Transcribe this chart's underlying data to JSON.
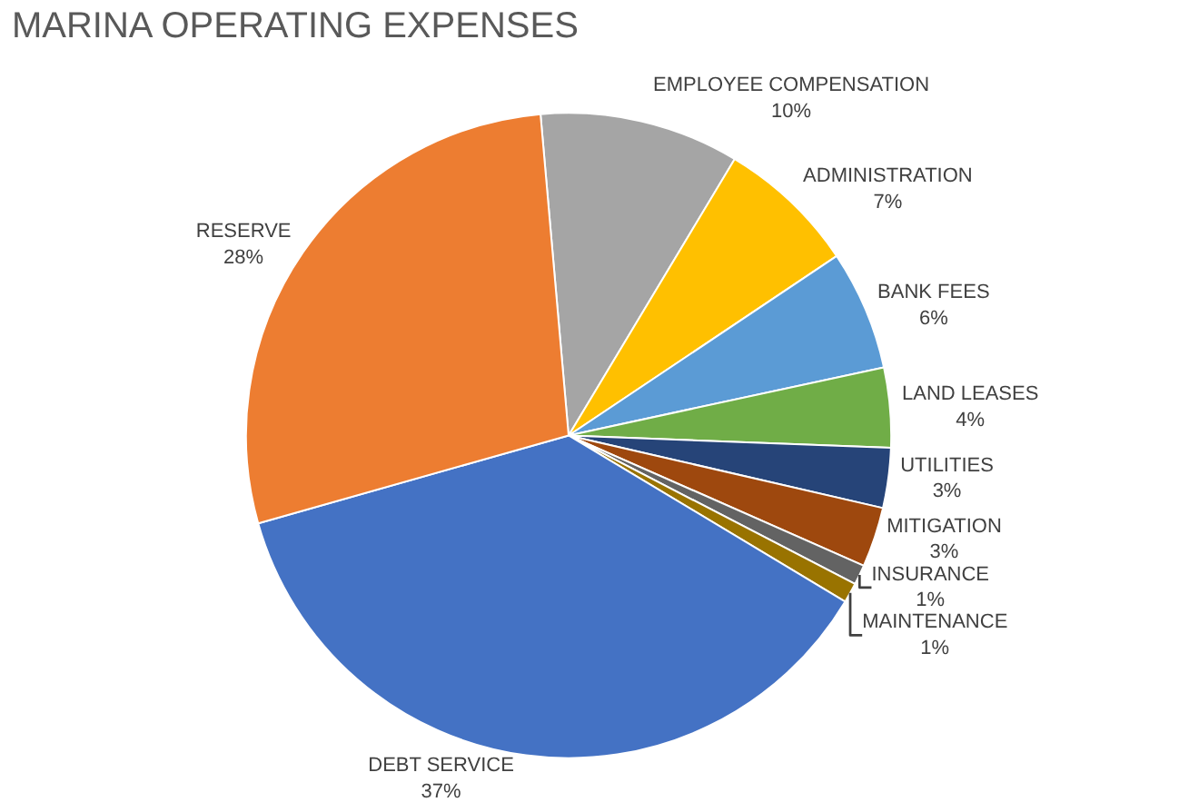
{
  "chart_data": {
    "type": "pie",
    "title": "MARINA OPERATING EXPENSES",
    "categories": [
      "EMPLOYEE COMPENSATION",
      "ADMINISTRATION",
      "BANK FEES",
      "LAND LEASES",
      "UTILITIES",
      "MITIGATION",
      "INSURANCE",
      "MAINTENANCE",
      "DEBT SERVICE",
      "RESERVE"
    ],
    "values": [
      10,
      7,
      6,
      4,
      3,
      3,
      1,
      1,
      37,
      28
    ],
    "value_labels": [
      "10%",
      "7%",
      "6%",
      "4%",
      "3%",
      "3%",
      "1%",
      "1%",
      "37%",
      "28%"
    ],
    "colors": [
      "#a5a5a5",
      "#ffc000",
      "#5b9bd5",
      "#70ad47",
      "#264478",
      "#9e480e",
      "#636363",
      "#997300",
      "#4472c4",
      "#ed7d31"
    ],
    "legend": false
  }
}
